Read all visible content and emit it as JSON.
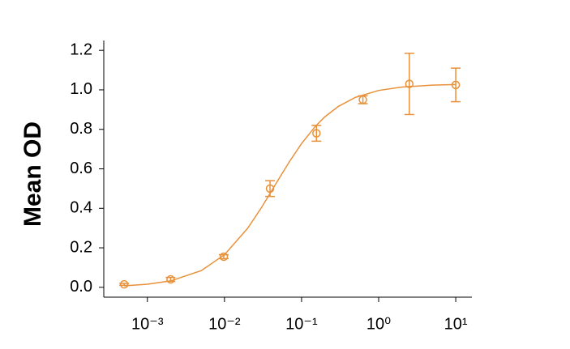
{
  "chart_data": {
    "type": "scatter",
    "y_label": "Mean OD",
    "xscale": "log",
    "color": "#e8913a",
    "x": [
      0.0005,
      0.002,
      0.0098,
      0.039,
      0.156,
      0.625,
      2.5,
      10
    ],
    "values": [
      0.015,
      0.04,
      0.155,
      0.5,
      0.78,
      0.95,
      1.03,
      1.025
    ],
    "errors": [
      0.005,
      0.01,
      0.01,
      0.04,
      0.04,
      0.02,
      0.155,
      0.085
    ],
    "fit": {
      "x": [
        0.0005,
        0.001,
        0.002,
        0.005,
        0.01,
        0.02,
        0.03,
        0.05,
        0.07,
        0.1,
        0.15,
        0.2,
        0.3,
        0.5,
        1,
        2,
        5,
        10
      ],
      "values": [
        0.0073,
        0.0154,
        0.0324,
        0.0844,
        0.165,
        0.299,
        0.402,
        0.545,
        0.638,
        0.728,
        0.814,
        0.863,
        0.916,
        0.962,
        0.997,
        1.014,
        1.024,
        1.027
      ]
    },
    "xlim": [
      0.000272,
      16.2
    ],
    "ylim": [
      -0.05,
      1.25
    ],
    "xticks": [
      {
        "value": 0.001,
        "label": "10⁻³"
      },
      {
        "value": 0.01,
        "label": "10⁻²"
      },
      {
        "value": 0.1,
        "label": "10⁻¹"
      },
      {
        "value": 1,
        "label": "10⁰"
      },
      {
        "value": 10,
        "label": "10¹"
      }
    ],
    "yticks": [
      {
        "value": 0,
        "label": "0.0"
      },
      0.2,
      0.4,
      0.6,
      0.8,
      {
        "value": 1,
        "label": "1.0"
      },
      1.2
    ]
  }
}
